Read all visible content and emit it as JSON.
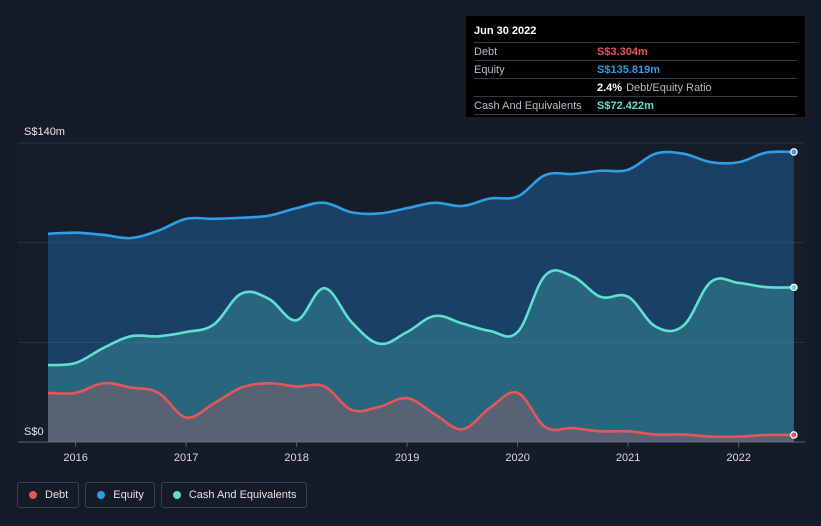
{
  "tooltip": {
    "date": "Jun 30 2022",
    "rows": [
      {
        "key": "Debt",
        "value": "S$3.304m",
        "color": "#e5565a"
      },
      {
        "key": "Equity",
        "value": "S$135.819m",
        "color": "#2f9ee6"
      },
      {
        "key": "",
        "value": "2.4%",
        "desc": "Debt/Equity Ratio",
        "color": "#ffffff"
      },
      {
        "key": "Cash And Equivalents",
        "value": "S$72.422m",
        "color": "#5fe0cf"
      }
    ]
  },
  "legend": [
    {
      "label": "Debt",
      "color": "#e5565a"
    },
    {
      "label": "Equity",
      "color": "#2f9ee6"
    },
    {
      "label": "Cash And Equivalents",
      "color": "#5fe0cf"
    }
  ],
  "chart_data": {
    "type": "area",
    "ylim": [
      0,
      140
    ],
    "y_tick_labels": [
      "S$0",
      "S$140m"
    ],
    "x_tick_labels": [
      "2016",
      "2017",
      "2018",
      "2019",
      "2020",
      "2021",
      "2022"
    ],
    "x_ticks": [
      2016,
      2017,
      2018,
      2019,
      2020,
      2021,
      2022
    ],
    "xlim": [
      2015.5,
      2022.5
    ],
    "grid": true,
    "series": [
      {
        "name": "Equity",
        "color": "#2f9ee6",
        "x": [
          2015.75,
          2016.0,
          2016.25,
          2016.5,
          2016.75,
          2017.0,
          2017.25,
          2017.5,
          2017.75,
          2018.0,
          2018.25,
          2018.5,
          2018.75,
          2019.0,
          2019.25,
          2019.5,
          2019.75,
          2020.0,
          2020.25,
          2020.5,
          2020.75,
          2021.0,
          2021.25,
          2021.5,
          2021.75,
          2022.0,
          2022.25,
          2022.5
        ],
        "values": [
          97.5,
          98,
          97,
          95.5,
          99,
          104.5,
          104.5,
          105,
          106,
          109.5,
          112,
          107.5,
          107,
          109.5,
          112,
          110.5,
          114,
          115,
          125,
          125.5,
          127,
          127.5,
          135,
          135,
          131,
          131,
          135.5,
          135.8
        ]
      },
      {
        "name": "Cash And Equivalents",
        "color": "#5fe0cf",
        "x": [
          2015.75,
          2016.0,
          2016.25,
          2016.5,
          2016.75,
          2017.0,
          2017.25,
          2017.5,
          2017.75,
          2018.0,
          2018.25,
          2018.5,
          2018.75,
          2019.0,
          2019.25,
          2019.5,
          2019.75,
          2020.0,
          2020.25,
          2020.5,
          2020.75,
          2021.0,
          2021.25,
          2021.5,
          2021.75,
          2022.0,
          2022.25,
          2022.5
        ],
        "values": [
          36,
          37,
          44,
          49.5,
          49.5,
          51.5,
          55,
          69.5,
          67,
          57,
          72,
          56,
          46,
          51.5,
          59,
          55.5,
          52,
          51.5,
          78,
          77.5,
          68,
          68,
          54,
          54.5,
          75,
          74.5,
          72.5,
          72.4
        ]
      },
      {
        "name": "Debt",
        "color": "#e5565a",
        "x": [
          2015.75,
          2016.0,
          2016.25,
          2016.5,
          2016.75,
          2017.0,
          2017.25,
          2017.5,
          2017.75,
          2018.0,
          2018.25,
          2018.5,
          2018.75,
          2019.0,
          2019.25,
          2019.5,
          2019.75,
          2020.0,
          2020.25,
          2020.5,
          2020.75,
          2021.0,
          2021.25,
          2021.5,
          2021.75,
          2022.0,
          2022.25,
          2022.5
        ],
        "values": [
          23,
          23,
          27.5,
          25.5,
          23,
          11.5,
          18,
          25.5,
          27.5,
          26,
          26,
          15,
          16.5,
          20.5,
          13,
          6,
          16,
          23,
          7,
          6.5,
          5,
          5,
          3.5,
          3.5,
          2.5,
          2.5,
          3.3,
          3.3
        ]
      }
    ]
  }
}
